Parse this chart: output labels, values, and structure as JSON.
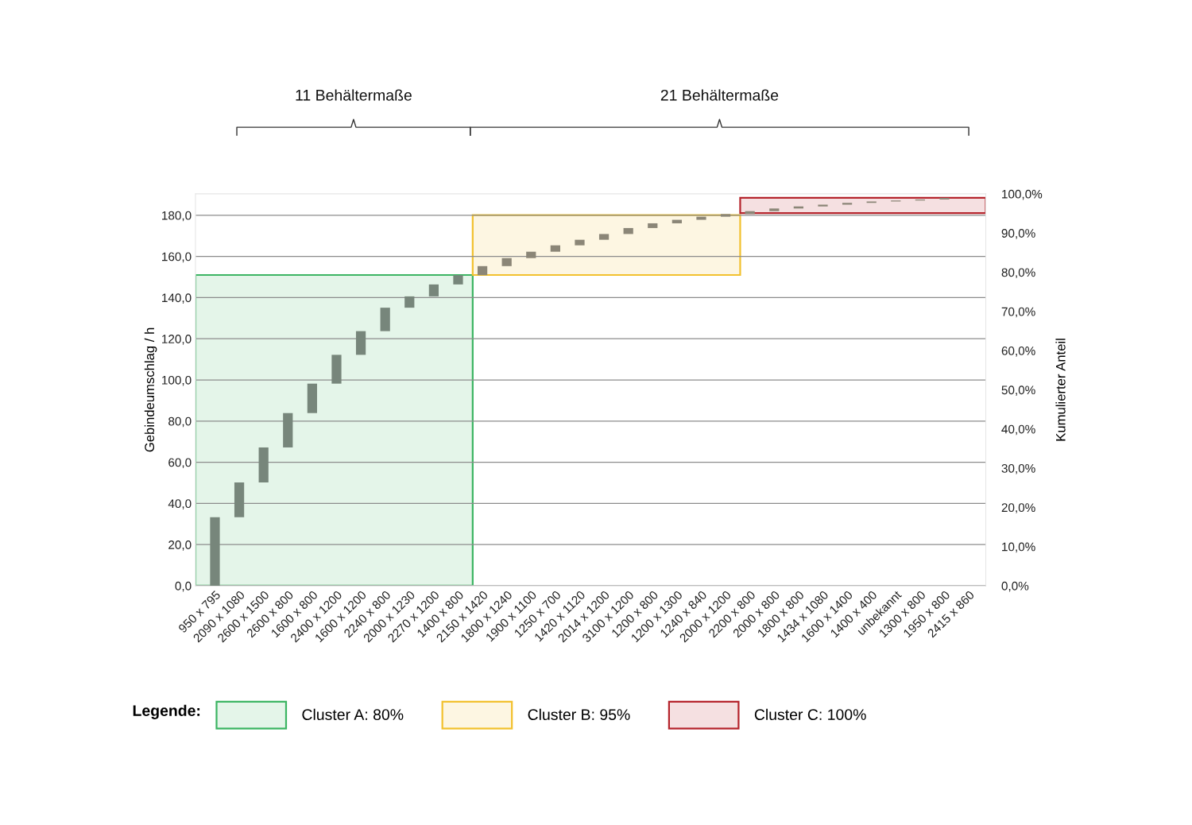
{
  "chart_data": {
    "type": "bar",
    "categories": [
      "950 x 795",
      "2090 x 1080",
      "2600 x 1500",
      "2600 x 800",
      "1600 x 800",
      "2400 x 1200",
      "1600 x 1200",
      "2240 x 800",
      "2000 x 1230",
      "2270 x 1200",
      "1400 x 800",
      "2150 x 1420",
      "1800 x 1240",
      "1900 x 1100",
      "1250 x 700",
      "1420 x 1120",
      "2014 x 1200",
      "3100 x 1200",
      "1200 x 800",
      "1200 x 1300",
      "1240 x 840",
      "2000 x 1200",
      "2200 x 800",
      "2000 x 800",
      "1800 x 800",
      "1434 x 1080",
      "1600 x 1400",
      "1400 x 400",
      "unbekannt",
      "1300 x 800",
      "1950 x 800",
      "2415 x 860"
    ],
    "values": [
      33.3,
      16.9,
      17.0,
      16.7,
      14.3,
      14.0,
      11.5,
      11.4,
      5.5,
      5.8,
      4.5,
      4.4,
      3.9,
      3.1,
      3.1,
      2.7,
      2.8,
      2.9,
      2.3,
      1.7,
      1.5,
      1.3,
      1.4,
      1.3,
      1.0,
      0.9,
      0.8,
      0.7,
      0.5,
      0.5,
      0.7,
      null
    ],
    "base": [
      0,
      33.3,
      50.2,
      67.2,
      83.9,
      98.2,
      112.2,
      123.7,
      135.1,
      140.6,
      146.4,
      150.9,
      155.3,
      159.2,
      162.3,
      165.4,
      168.1,
      170.9,
      173.8,
      176.1,
      177.8,
      179.3,
      180.6,
      182.0,
      183.3,
      184.3,
      185.2,
      186.0,
      186.7,
      187.2,
      187.7,
      null
    ],
    "colors": [
      "#77867b",
      "#77867b",
      "#77867b",
      "#77867b",
      "#77867b",
      "#77867b",
      "#77867b",
      "#77867b",
      "#77867b",
      "#77867b",
      "#77867b",
      "#8b8677",
      "#8b8677",
      "#8b8677",
      "#8b8677",
      "#8b8677",
      "#8b8677",
      "#8b8677",
      "#8b8677",
      "#8b8677",
      "#8b8677",
      "#8b8677",
      "#8b8677",
      "#8b8677",
      "#8b8677",
      "#8b8677",
      "#8b8677",
      "#8b8677",
      "#8b8677",
      "#8b8677",
      "#8b8677",
      "#8b8677"
    ],
    "ylabel": "Gebindeumschlag / h",
    "y2label": "Kumulierter Anteil",
    "ylim": [
      0,
      190.4
    ],
    "yticks": [
      {
        "value": 0,
        "label": "0,0"
      },
      {
        "value": 20,
        "label": "20,0"
      },
      {
        "value": 40,
        "label": "40,0"
      },
      {
        "value": 60,
        "label": "60,0"
      },
      {
        "value": 80,
        "label": "80,0"
      },
      {
        "value": 100,
        "label": "100,0"
      },
      {
        "value": 120,
        "label": "120,0"
      },
      {
        "value": 140,
        "label": "140,0"
      },
      {
        "value": 160,
        "label": "160,0"
      },
      {
        "value": 180,
        "label": "180,0"
      }
    ],
    "y2lim": [
      0,
      100
    ],
    "y2ticks": [
      {
        "value": 0,
        "label": "0,0%"
      },
      {
        "value": 10,
        "label": "10,0%"
      },
      {
        "value": 20,
        "label": "20,0%"
      },
      {
        "value": 30,
        "label": "30,0%"
      },
      {
        "value": 40,
        "label": "40,0%"
      },
      {
        "value": 50,
        "label": "50,0%"
      },
      {
        "value": 60,
        "label": "60,0%"
      },
      {
        "value": 70,
        "label": "70,0%"
      },
      {
        "value": 80,
        "label": "80,0%"
      },
      {
        "value": 90,
        "label": "90,0%"
      },
      {
        "value": 100,
        "label": "100,0%"
      }
    ],
    "grid": "y",
    "bands": [
      {
        "axis": "y2",
        "from": 0,
        "to": 79.3,
        "label": "Cluster A: 80%",
        "color": "#3cb563"
      },
      {
        "axis": "y2",
        "from": 79.3,
        "to": 94.6,
        "label": "Cluster B: 95%",
        "color": "#f2c12e"
      },
      {
        "axis": "y2",
        "from": 95.1,
        "to": 99.0,
        "label": "Cluster C: 100%",
        "color": "#b5242c"
      }
    ],
    "legend": "bottom",
    "legend_title": "Legende:",
    "annotations": [
      "11 Behältermaße",
      "21 Behältermaße"
    ]
  }
}
